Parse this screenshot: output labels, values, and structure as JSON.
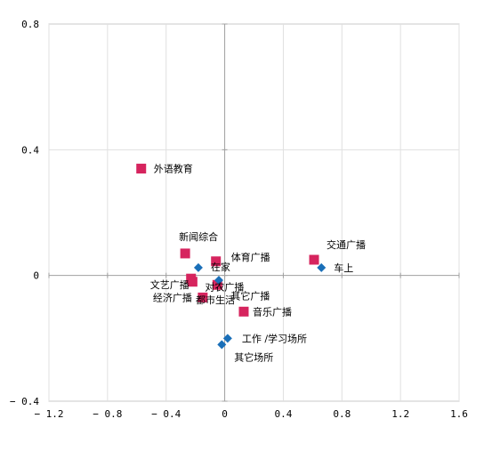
{
  "chart_data": {
    "type": "scatter",
    "title": "",
    "xlabel": "",
    "ylabel": "",
    "xlim": [
      -1.2,
      1.6
    ],
    "ylim": [
      -0.4,
      0.8
    ],
    "x_ticks": [
      "-1.2",
      "-0.8",
      "-0.4",
      "0",
      "0.4",
      "0.8",
      "1.2",
      "1.6"
    ],
    "y_ticks": [
      "0.8",
      "0.4",
      "0",
      "-0.4"
    ],
    "grid": true,
    "colors": {
      "programs": "#d6245e",
      "places": "#1a6fb8"
    },
    "series": [
      {
        "marker": "square",
        "points": [
          {
            "label": "外语教育",
            "x": -0.57,
            "y": 0.34
          },
          {
            "label": "新闻综合",
            "x": -0.27,
            "y": 0.07
          },
          {
            "label": "体育广播",
            "x": -0.06,
            "y": 0.045
          },
          {
            "label": "交通广播",
            "x": 0.61,
            "y": 0.05
          },
          {
            "label": "文艺广播",
            "x": -0.23,
            "y": -0.01
          },
          {
            "label": "对农广播",
            "x": -0.22,
            "y": -0.02
          },
          {
            "label": "其它广播",
            "x": -0.05,
            "y": -0.03
          },
          {
            "label": "经济广播",
            "x": -0.15,
            "y": -0.07
          },
          {
            "label": "音乐广播",
            "x": 0.13,
            "y": -0.115
          }
        ]
      },
      {
        "marker": "diamond",
        "points": [
          {
            "label": "在家",
            "x": -0.18,
            "y": 0.025
          },
          {
            "label": "车上",
            "x": 0.66,
            "y": 0.025
          },
          {
            "label": "都市生活",
            "x": -0.04,
            "y": -0.015
          },
          {
            "label": "工作 /学习场所",
            "x": 0.02,
            "y": -0.2
          },
          {
            "label": "其它场所",
            "x": -0.02,
            "y": -0.22
          }
        ]
      }
    ]
  }
}
